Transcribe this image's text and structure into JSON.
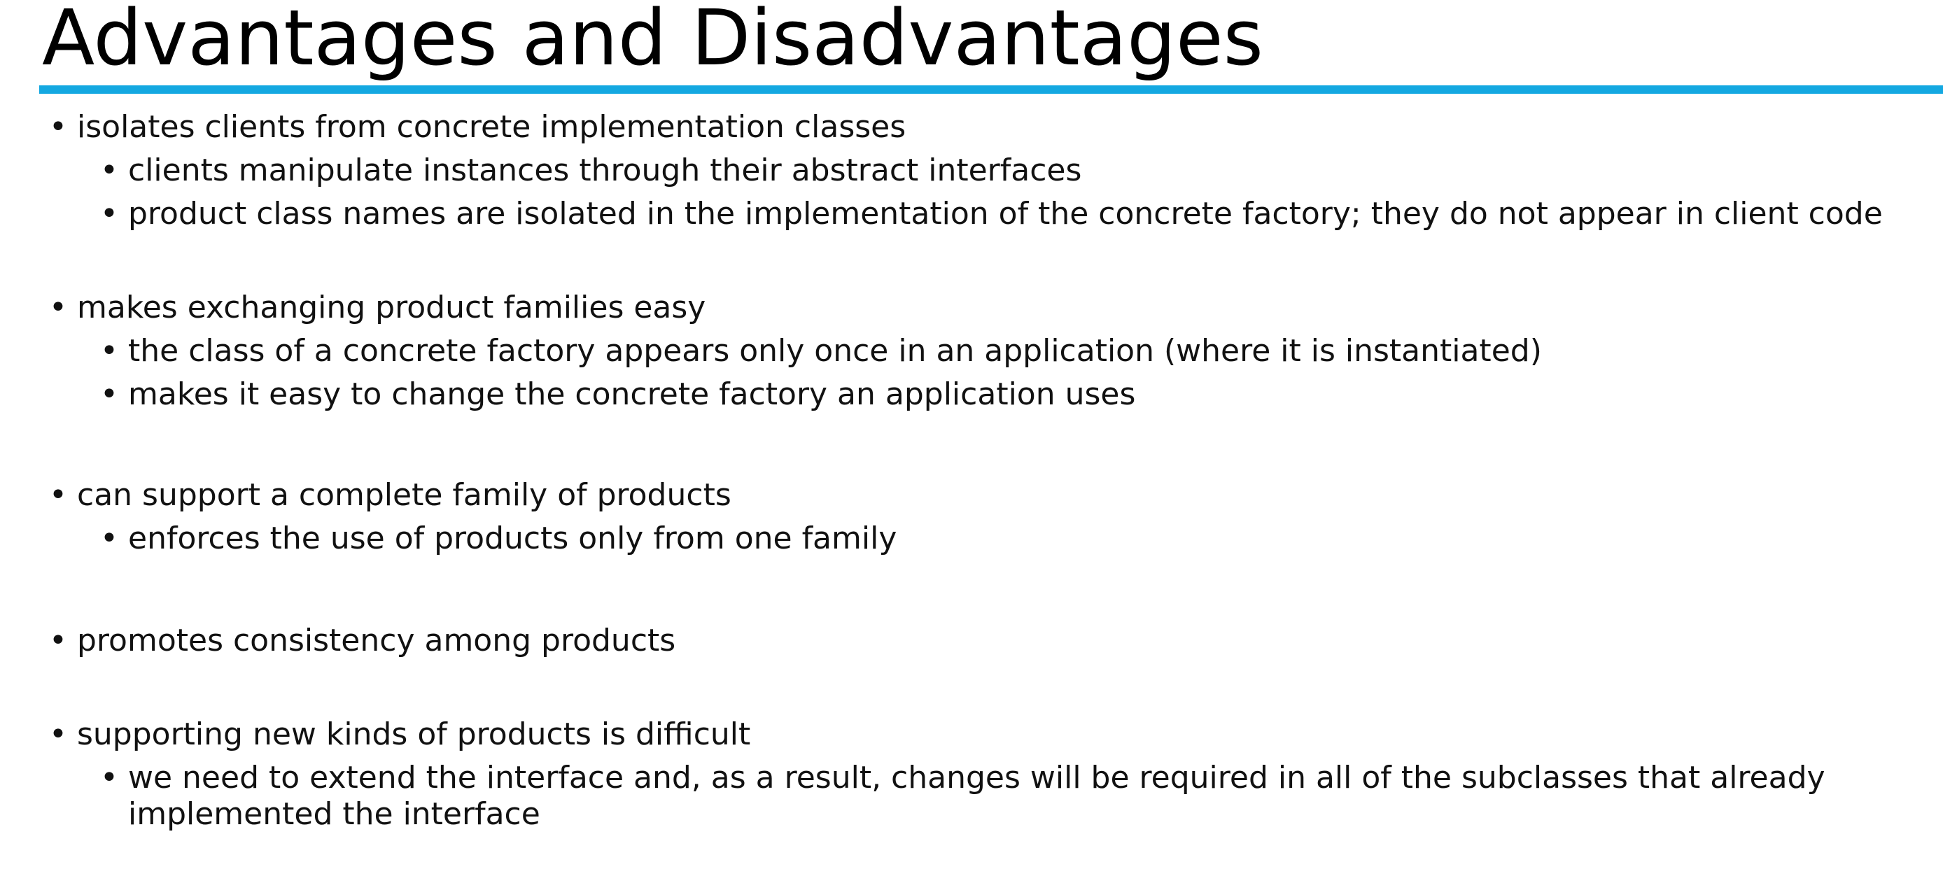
{
  "slide": {
    "title": "Advantages and Disadvantages",
    "accent_color": "#14a8e1",
    "bullet_glyph": "•",
    "points": [
      {
        "text": "isolates clients from concrete implementation classes",
        "subpoints": [
          "clients manipulate instances through their abstract interfaces",
          "product class names are isolated in the implementation of the concrete factory; they do not appear in client code"
        ]
      },
      {
        "text": "makes exchanging product families easy",
        "subpoints": [
          "the class of a concrete factory appears only once in an application (where it is instantiated)",
          "makes it easy to change the concrete factory an application uses"
        ]
      },
      {
        "text": "can support a complete family of products",
        "subpoints": [
          "enforces the use of products only from one family"
        ]
      },
      {
        "text": "promotes consistency among products",
        "subpoints": []
      },
      {
        "text": "supporting new kinds of products is difficult",
        "subpoints": [
          "we need to extend the interface and, as a result, changes will be required in all of the subclasses that already implemented the interface"
        ]
      }
    ]
  }
}
